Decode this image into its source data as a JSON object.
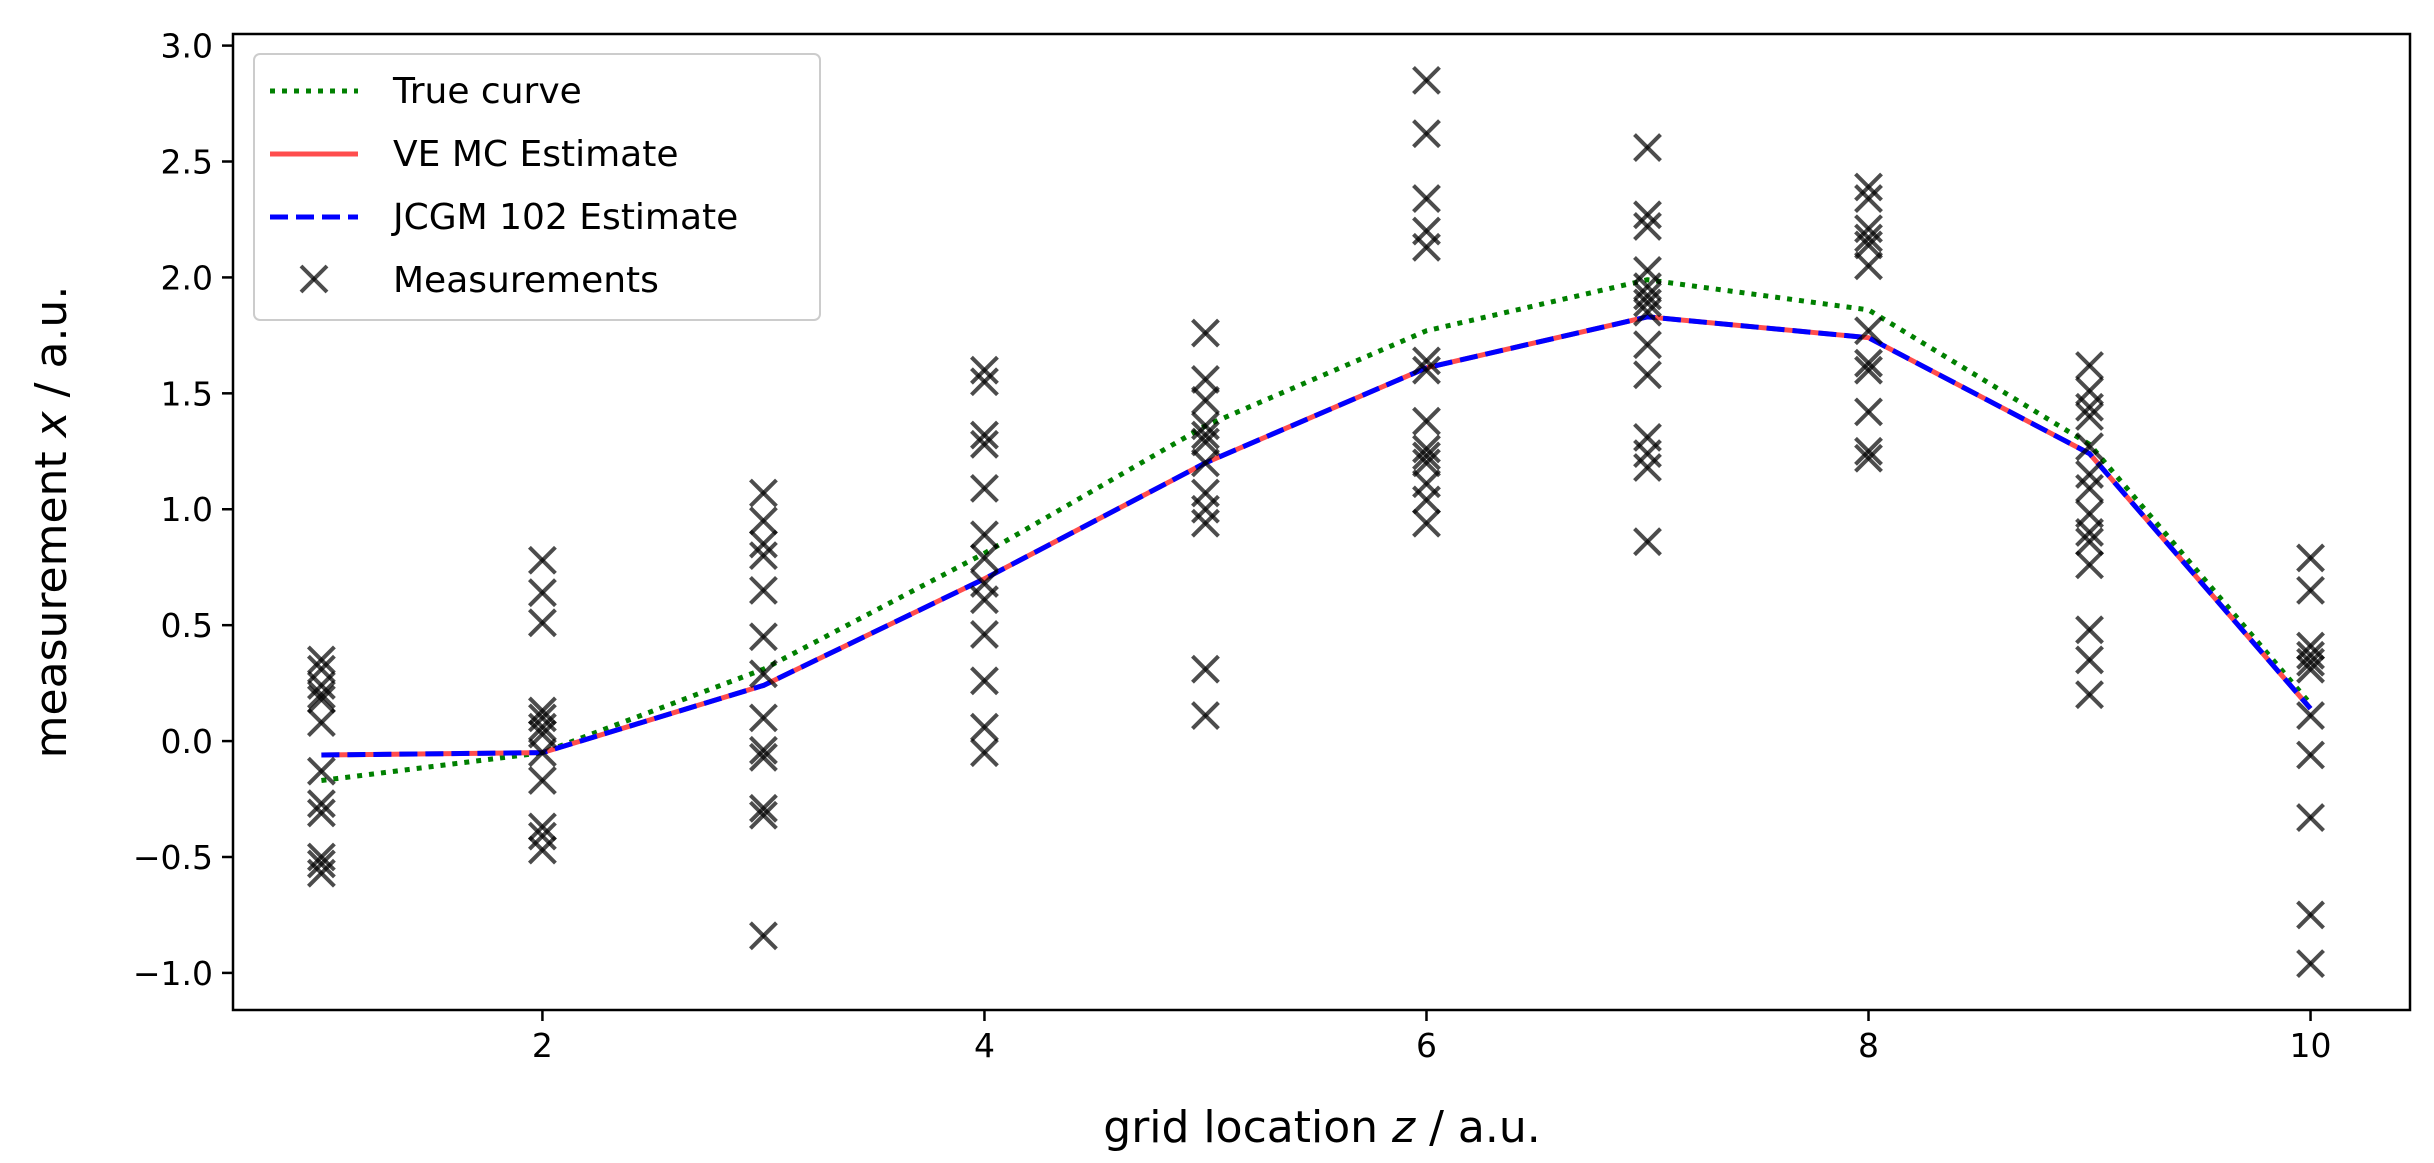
{
  "chart_data": {
    "type": "line",
    "xlabel": {
      "prefix": "grid location ",
      "var": "z",
      "suffix": " / a.u."
    },
    "ylabel": {
      "prefix": "measurement ",
      "var": "x",
      "suffix": " / a.u."
    },
    "xlim": [
      0.6,
      10.45
    ],
    "ylim": [
      -1.16,
      3.05
    ],
    "xticks": [
      2,
      4,
      6,
      8,
      10
    ],
    "yticks": [
      -1.0,
      -0.5,
      0.0,
      0.5,
      1.0,
      1.5,
      2.0,
      2.5,
      3.0
    ],
    "xtick_labels": [
      "2",
      "4",
      "6",
      "8",
      "10"
    ],
    "ytick_labels": [
      "−1.0",
      "−0.5",
      "0.0",
      "0.5",
      "1.0",
      "1.5",
      "2.0",
      "2.5",
      "3.0"
    ],
    "grid": false,
    "legend_position": "top-left",
    "x": [
      1,
      2,
      3,
      4,
      5,
      6,
      7,
      8,
      9,
      10
    ],
    "series": [
      {
        "name": "True curve",
        "style": "dotted",
        "color": "#008000",
        "values": [
          -0.17,
          -0.05,
          0.31,
          0.81,
          1.36,
          1.77,
          1.99,
          1.86,
          1.28,
          0.16
        ]
      },
      {
        "name": "VE MC Estimate",
        "style": "solid",
        "color": "#ff4d4d",
        "values": [
          -0.06,
          -0.05,
          0.24,
          0.7,
          1.2,
          1.61,
          1.83,
          1.74,
          1.24,
          0.14
        ]
      },
      {
        "name": "JCGM 102 Estimate",
        "style": "dashed",
        "color": "#0000ff",
        "values": [
          -0.06,
          -0.05,
          0.24,
          0.7,
          1.2,
          1.61,
          1.83,
          1.74,
          1.24,
          0.14
        ]
      }
    ],
    "measurements": {
      "name": "Measurements",
      "color": "#000000",
      "points": [
        [
          1,
          0.35
        ],
        [
          1,
          0.31
        ],
        [
          1,
          0.24
        ],
        [
          1,
          0.2
        ],
        [
          1,
          0.18
        ],
        [
          1,
          0.08
        ],
        [
          1,
          -0.13
        ],
        [
          1,
          -0.27
        ],
        [
          1,
          -0.31
        ],
        [
          1,
          -0.5
        ],
        [
          1,
          -0.53
        ],
        [
          1,
          -0.57
        ],
        [
          2,
          0.78
        ],
        [
          2,
          0.64
        ],
        [
          2,
          0.51
        ],
        [
          2,
          0.13
        ],
        [
          2,
          0.1
        ],
        [
          2,
          0.06
        ],
        [
          2,
          0.03
        ],
        [
          2,
          -0.05
        ],
        [
          2,
          -0.17
        ],
        [
          2,
          -0.37
        ],
        [
          2,
          -0.41
        ],
        [
          2,
          -0.47
        ],
        [
          3,
          1.07
        ],
        [
          3,
          0.95
        ],
        [
          3,
          0.85
        ],
        [
          3,
          0.8
        ],
        [
          3,
          0.65
        ],
        [
          3,
          0.45
        ],
        [
          3,
          0.29
        ],
        [
          3,
          0.1
        ],
        [
          3,
          -0.04
        ],
        [
          3,
          -0.07
        ],
        [
          3,
          -0.29
        ],
        [
          3,
          -0.32
        ],
        [
          3,
          -0.84
        ],
        [
          4,
          1.6
        ],
        [
          4,
          1.55
        ],
        [
          4,
          1.32
        ],
        [
          4,
          1.28
        ],
        [
          4,
          1.09
        ],
        [
          4,
          0.89
        ],
        [
          4,
          0.79
        ],
        [
          4,
          0.68
        ],
        [
          4,
          0.61
        ],
        [
          4,
          0.46
        ],
        [
          4,
          0.26
        ],
        [
          4,
          0.06
        ],
        [
          4,
          -0.05
        ],
        [
          5,
          1.76
        ],
        [
          5,
          1.56
        ],
        [
          5,
          1.47
        ],
        [
          5,
          1.36
        ],
        [
          5,
          1.32
        ],
        [
          5,
          1.29
        ],
        [
          5,
          1.2
        ],
        [
          5,
          1.07
        ],
        [
          5,
          1.0
        ],
        [
          5,
          0.94
        ],
        [
          5,
          0.31
        ],
        [
          5,
          0.11
        ],
        [
          6,
          2.85
        ],
        [
          6,
          2.62
        ],
        [
          6,
          2.34
        ],
        [
          6,
          2.2
        ],
        [
          6,
          2.13
        ],
        [
          6,
          1.64
        ],
        [
          6,
          1.6
        ],
        [
          6,
          1.38
        ],
        [
          6,
          1.26
        ],
        [
          6,
          1.23
        ],
        [
          6,
          1.2
        ],
        [
          6,
          1.11
        ],
        [
          6,
          1.04
        ],
        [
          6,
          0.94
        ],
        [
          7,
          2.56
        ],
        [
          7,
          2.27
        ],
        [
          7,
          2.22
        ],
        [
          7,
          2.03
        ],
        [
          7,
          1.96
        ],
        [
          7,
          1.92
        ],
        [
          7,
          1.89
        ],
        [
          7,
          1.85
        ],
        [
          7,
          1.71
        ],
        [
          7,
          1.58
        ],
        [
          7,
          1.31
        ],
        [
          7,
          1.24
        ],
        [
          7,
          1.18
        ],
        [
          7,
          0.86
        ],
        [
          8,
          2.39
        ],
        [
          8,
          2.34
        ],
        [
          8,
          2.21
        ],
        [
          8,
          2.17
        ],
        [
          8,
          2.14
        ],
        [
          8,
          2.05
        ],
        [
          8,
          1.77
        ],
        [
          8,
          1.63
        ],
        [
          8,
          1.6
        ],
        [
          8,
          1.42
        ],
        [
          8,
          1.25
        ],
        [
          8,
          1.22
        ],
        [
          9,
          1.62
        ],
        [
          9,
          1.51
        ],
        [
          9,
          1.44
        ],
        [
          9,
          1.4
        ],
        [
          9,
          1.27
        ],
        [
          9,
          1.15
        ],
        [
          9,
          1.09
        ],
        [
          9,
          0.98
        ],
        [
          9,
          0.9
        ],
        [
          9,
          0.86
        ],
        [
          9,
          0.76
        ],
        [
          9,
          0.48
        ],
        [
          9,
          0.35
        ],
        [
          9,
          0.2
        ],
        [
          10,
          0.79
        ],
        [
          10,
          0.65
        ],
        [
          10,
          0.41
        ],
        [
          10,
          0.37
        ],
        [
          10,
          0.34
        ],
        [
          10,
          0.31
        ],
        [
          10,
          0.11
        ],
        [
          10,
          -0.06
        ],
        [
          10,
          -0.33
        ],
        [
          10,
          -0.75
        ],
        [
          10,
          -0.96
        ]
      ]
    }
  }
}
